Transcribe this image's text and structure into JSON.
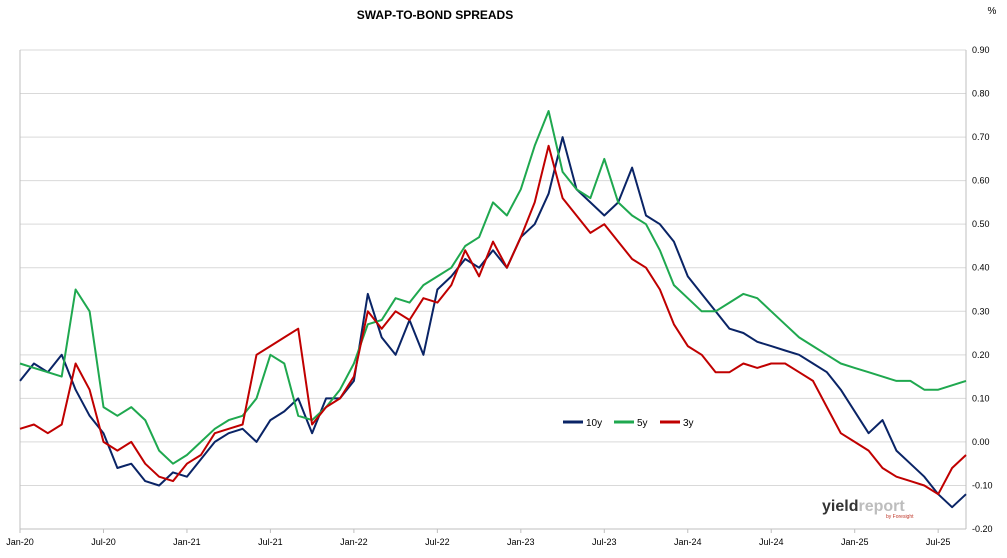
{
  "chart_data": {
    "type": "line",
    "title": "SWAP-TO-BOND SPREADS",
    "unit": "%",
    "ylim": [
      -0.2,
      0.9
    ],
    "y_ticks": [
      "0.90",
      "0.80",
      "0.70",
      "0.60",
      "0.50",
      "0.40",
      "0.30",
      "0.20",
      "0.10",
      "0.00",
      "-0.10",
      "-0.20"
    ],
    "y_axis_side": "right",
    "x_ticks": [
      "Jan-20",
      "Jul-20",
      "Jan-21",
      "Jul-21",
      "Jan-22",
      "Jul-22",
      "Jan-23",
      "Jul-23",
      "Jan-24",
      "Jul-24",
      "Jan-25",
      "Jul-25"
    ],
    "x_range": [
      "Jan-20",
      "Sep-25"
    ],
    "grid": "horizontal",
    "legend_position": "center-right",
    "series": [
      {
        "name": "10y",
        "color": "#0a2466",
        "x": [
          0,
          1,
          2,
          3,
          4,
          5,
          6,
          7,
          8,
          9,
          10,
          11,
          12,
          13,
          14,
          15,
          16,
          17,
          18,
          19,
          20,
          21,
          22,
          23,
          24,
          25,
          26,
          27,
          28,
          29,
          30,
          31,
          32,
          33,
          34,
          35,
          36,
          37,
          38,
          39,
          40,
          41,
          42,
          43,
          44,
          45,
          46,
          47,
          48,
          49,
          50,
          51,
          52,
          53,
          54,
          55,
          56,
          57,
          58,
          59,
          60,
          61,
          62,
          63,
          64,
          65,
          66,
          67,
          68
        ],
        "values": [
          0.14,
          0.18,
          0.16,
          0.2,
          0.12,
          0.06,
          0.02,
          -0.06,
          -0.05,
          -0.09,
          -0.1,
          -0.07,
          -0.08,
          -0.04,
          0.0,
          0.02,
          0.03,
          0.0,
          0.05,
          0.07,
          0.1,
          0.02,
          0.1,
          0.1,
          0.14,
          0.34,
          0.24,
          0.2,
          0.28,
          0.2,
          0.35,
          0.38,
          0.42,
          0.4,
          0.44,
          0.4,
          0.47,
          0.5,
          0.57,
          0.7,
          0.58,
          0.55,
          0.52,
          0.55,
          0.63,
          0.52,
          0.5,
          0.46,
          0.38,
          0.34,
          0.3,
          0.26,
          0.25,
          0.23,
          0.22,
          0.21,
          0.2,
          0.18,
          0.16,
          0.12,
          0.07,
          0.02,
          0.05,
          -0.02,
          -0.05,
          -0.08,
          -0.12,
          -0.15,
          -0.12
        ]
      },
      {
        "name": "5y",
        "color": "#1fa84f",
        "x": [
          0,
          1,
          2,
          3,
          4,
          5,
          6,
          7,
          8,
          9,
          10,
          11,
          12,
          13,
          14,
          15,
          16,
          17,
          18,
          19,
          20,
          21,
          22,
          23,
          24,
          25,
          26,
          27,
          28,
          29,
          30,
          31,
          32,
          33,
          34,
          35,
          36,
          37,
          38,
          39,
          40,
          41,
          42,
          43,
          44,
          45,
          46,
          47,
          48,
          49,
          50,
          51,
          52,
          53,
          54,
          55,
          56,
          57,
          58,
          59,
          60,
          61,
          62,
          63,
          64,
          65,
          66,
          67,
          68
        ],
        "values": [
          0.18,
          0.17,
          0.16,
          0.15,
          0.35,
          0.3,
          0.08,
          0.06,
          0.08,
          0.05,
          -0.02,
          -0.05,
          -0.03,
          0.0,
          0.03,
          0.05,
          0.06,
          0.1,
          0.2,
          0.18,
          0.06,
          0.05,
          0.08,
          0.12,
          0.18,
          0.27,
          0.28,
          0.33,
          0.32,
          0.36,
          0.38,
          0.4,
          0.45,
          0.47,
          0.55,
          0.52,
          0.58,
          0.68,
          0.76,
          0.62,
          0.58,
          0.56,
          0.65,
          0.55,
          0.52,
          0.5,
          0.44,
          0.36,
          0.33,
          0.3,
          0.3,
          0.32,
          0.34,
          0.33,
          0.3,
          0.27,
          0.24,
          0.22,
          0.2,
          0.18,
          0.17,
          0.16,
          0.15,
          0.14,
          0.14,
          0.12,
          0.12,
          0.13,
          0.14
        ]
      },
      {
        "name": "3y",
        "color": "#c00000",
        "x": [
          0,
          1,
          2,
          3,
          4,
          5,
          6,
          7,
          8,
          9,
          10,
          11,
          12,
          13,
          14,
          15,
          16,
          17,
          18,
          19,
          20,
          21,
          22,
          23,
          24,
          25,
          26,
          27,
          28,
          29,
          30,
          31,
          32,
          33,
          34,
          35,
          36,
          37,
          38,
          39,
          40,
          41,
          42,
          43,
          44,
          45,
          46,
          47,
          48,
          49,
          50,
          51,
          52,
          53,
          54,
          55,
          56,
          57,
          58,
          59,
          60,
          61,
          62,
          63,
          64,
          65,
          66,
          67,
          68
        ],
        "values": [
          0.03,
          0.04,
          0.02,
          0.04,
          0.18,
          0.12,
          0.0,
          -0.02,
          0.0,
          -0.05,
          -0.08,
          -0.09,
          -0.05,
          -0.03,
          0.02,
          0.03,
          0.04,
          0.2,
          0.22,
          0.24,
          0.26,
          0.04,
          0.08,
          0.1,
          0.15,
          0.3,
          0.26,
          0.3,
          0.28,
          0.33,
          0.32,
          0.36,
          0.44,
          0.38,
          0.46,
          0.4,
          0.47,
          0.55,
          0.68,
          0.56,
          0.52,
          0.48,
          0.5,
          0.46,
          0.42,
          0.4,
          0.35,
          0.27,
          0.22,
          0.2,
          0.16,
          0.16,
          0.18,
          0.17,
          0.18,
          0.18,
          0.16,
          0.14,
          0.08,
          0.02,
          0.0,
          -0.02,
          -0.06,
          -0.08,
          -0.09,
          -0.1,
          -0.12,
          -0.06,
          -0.03
        ]
      }
    ]
  },
  "watermark": {
    "word_dark": "yield",
    "word_light": "report",
    "tagline": "by Foresight"
  }
}
